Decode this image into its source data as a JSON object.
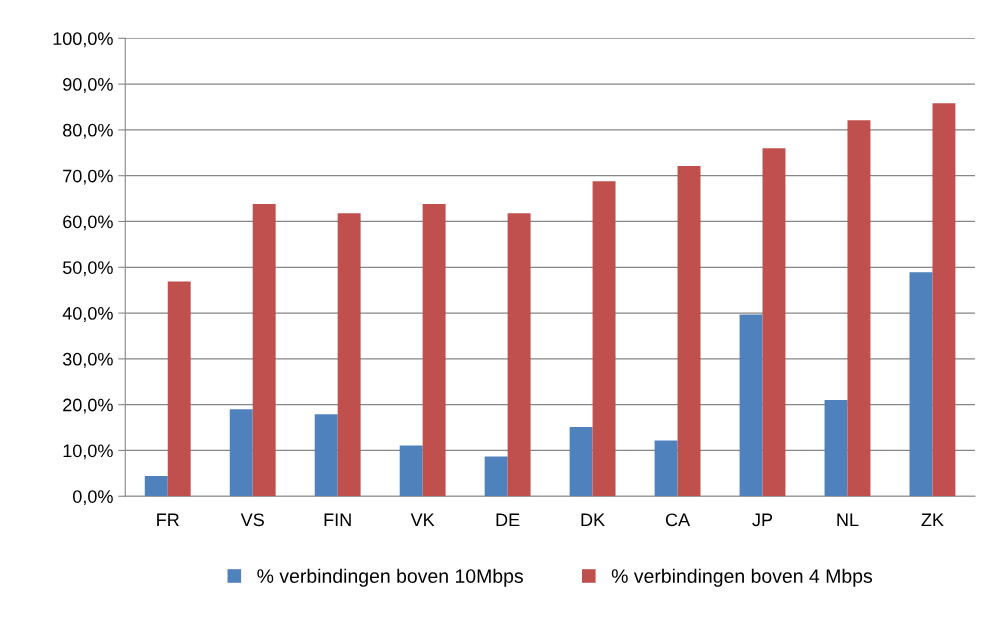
{
  "chart_data": {
    "type": "bar",
    "categories": [
      "FR",
      "VS",
      "FIN",
      "VK",
      "DE",
      "DK",
      "CA",
      "JP",
      "NL",
      "ZK"
    ],
    "series": [
      {
        "name": "% verbindingen boven 10Mbps",
        "color": "#4f81bd",
        "values": [
          4.4,
          19.0,
          17.9,
          11.1,
          8.7,
          15.1,
          12.2,
          39.7,
          21.0,
          48.9
        ]
      },
      {
        "name": "% verbindingen boven 4 Mbps",
        "color": "#c0504d",
        "values": [
          46.9,
          63.8,
          61.8,
          63.8,
          61.8,
          68.8,
          72.1,
          76.0,
          82.1,
          85.8
        ]
      }
    ],
    "ylim": [
      0,
      100
    ],
    "yticks": [
      {
        "value": 0,
        "label": "0,0%"
      },
      {
        "value": 10,
        "label": "10,0%"
      },
      {
        "value": 20,
        "label": "20,0%"
      },
      {
        "value": 30,
        "label": "30,0%"
      },
      {
        "value": 40,
        "label": "40,0%"
      },
      {
        "value": 50,
        "label": "50,0%"
      },
      {
        "value": 60,
        "label": "60,0%"
      },
      {
        "value": 70,
        "label": "70,0%"
      },
      {
        "value": 80,
        "label": "80,0%"
      },
      {
        "value": 90,
        "label": "90,0%"
      },
      {
        "value": 100,
        "label": "100,0%"
      }
    ],
    "grid": "y",
    "legend": "bottom"
  }
}
